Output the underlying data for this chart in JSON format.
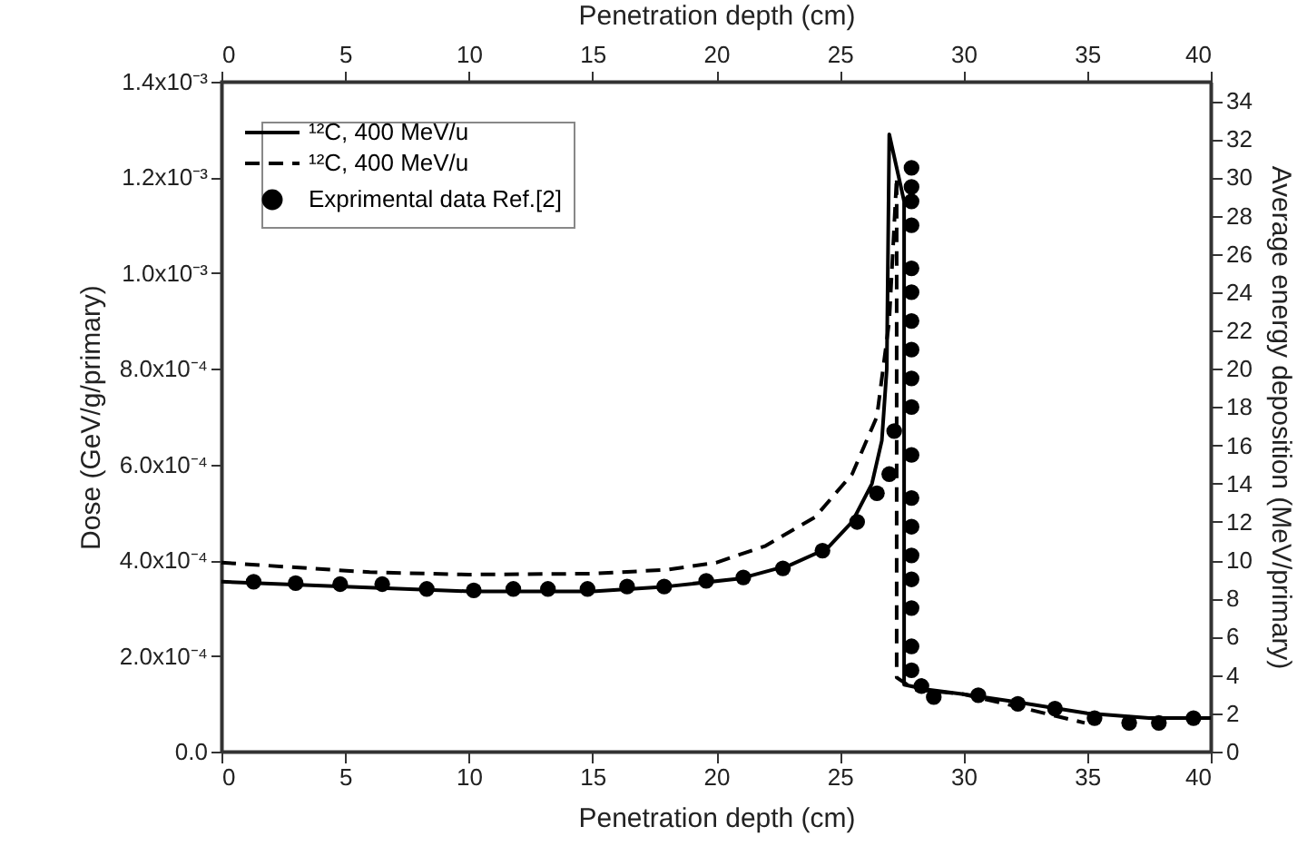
{
  "chart_data": {
    "type": "line",
    "xlabel": "Penetration depth (cm)",
    "x2label": "Penetration depth (cm)",
    "ylabel": "Dose (GeV/g/primary)",
    "y2label": "Average energy deposition (MeV/primary)",
    "xlim": [
      0,
      40
    ],
    "xticks": [
      0,
      5,
      10,
      15,
      20,
      25,
      30,
      35,
      40
    ],
    "x2lim": [
      0,
      40
    ],
    "x2ticks": [
      0,
      5,
      10,
      15,
      20,
      25,
      30,
      35,
      40
    ],
    "ylim": [
      0,
      0.0014
    ],
    "yticks": [
      {
        "value": 0,
        "label": "0.0"
      },
      {
        "value": 0.0002,
        "label": "2.0x10⁻⁴"
      },
      {
        "value": 0.0004,
        "label": "4.0x10⁻⁴"
      },
      {
        "value": 0.0006,
        "label": "6.0x10⁻⁴"
      },
      {
        "value": 0.0008,
        "label": "8.0x10⁻⁴"
      },
      {
        "value": 0.001,
        "label": "1.0x10⁻³"
      },
      {
        "value": 0.0012,
        "label": "1.2x10⁻³"
      },
      {
        "value": 0.0014,
        "label": "1.4x10⁻³"
      }
    ],
    "y2lim": [
      0,
      35
    ],
    "y2ticks": [
      0,
      2,
      4,
      6,
      8,
      10,
      12,
      14,
      16,
      18,
      20,
      22,
      24,
      26,
      28,
      30,
      32,
      34
    ],
    "grid": false,
    "legend": "top left",
    "series": [
      {
        "name": "¹²C, 400 MeV/u",
        "type": "line",
        "line_style": "solid",
        "marker": "none",
        "color": "#000000",
        "x": [
          0,
          5,
          10,
          15,
          18,
          21,
          23,
          24.5,
          25.5,
          26.3,
          26.7,
          26.9,
          27.0,
          27.6,
          27.6,
          28.5,
          30,
          32,
          35,
          37.5,
          40
        ],
        "values": [
          0.000355,
          0.000345,
          0.000335,
          0.000335,
          0.000345,
          0.000362,
          0.00039,
          0.000425,
          0.00048,
          0.00056,
          0.00065,
          0.0008,
          0.00129,
          0.00115,
          0.00014,
          0.00013,
          0.00012,
          0.000105,
          8e-05,
          7e-05,
          7e-05
        ]
      },
      {
        "name": "¹²C, 400 MeV/u",
        "type": "line",
        "line_style": "dashed",
        "marker": "none",
        "color": "#000000",
        "x": [
          0,
          3,
          6,
          10,
          15,
          18,
          20,
          22,
          24,
          25.5,
          26.5,
          27.0,
          27.3,
          27.3,
          28,
          30,
          32.5,
          34.9
        ],
        "values": [
          0.000395,
          0.000385,
          0.000375,
          0.00037,
          0.000372,
          0.00038,
          0.000395,
          0.00043,
          0.00049,
          0.00058,
          0.0007,
          0.0009,
          0.0012,
          0.000155,
          0.00013,
          0.00012,
          9e-05,
          6e-05
        ]
      },
      {
        "name": "Exprimental data Ref.[2]",
        "type": "scatter",
        "marker": "circle",
        "color": "#000000",
        "x": [
          1.3,
          3,
          4.8,
          6.5,
          8.3,
          10.2,
          11.8,
          13.2,
          14.8,
          16.4,
          17.9,
          19.6,
          21.1,
          22.7,
          24.3,
          25.7,
          26.5,
          27.0,
          27.2,
          27.9,
          27.9,
          27.9,
          27.9,
          27.9,
          27.9,
          27.9,
          27.9,
          27.9,
          27.9,
          27.9,
          27.9,
          27.9,
          27.9,
          27.9,
          27.9,
          27.9,
          27.9,
          28.3,
          28.8,
          30.6,
          32.2,
          33.7,
          35.3,
          36.7,
          37.9,
          39.3
        ],
        "values": [
          0.000355,
          0.000352,
          0.00035,
          0.00035,
          0.00034,
          0.000337,
          0.00034,
          0.00034,
          0.00034,
          0.000345,
          0.000345,
          0.000357,
          0.000364,
          0.000383,
          0.00042,
          0.00048,
          0.00054,
          0.00058,
          0.00067,
          0.00122,
          0.00118,
          0.00115,
          0.0011,
          0.00101,
          0.00096,
          0.0009,
          0.00084,
          0.00078,
          0.00072,
          0.00062,
          0.00053,
          0.00047,
          0.00041,
          0.00036,
          0.0003,
          0.00022,
          0.00017,
          0.000137,
          0.000114,
          0.000118,
          0.0001,
          9e-05,
          7e-05,
          6e-05,
          6e-05,
          7e-05
        ]
      }
    ]
  }
}
